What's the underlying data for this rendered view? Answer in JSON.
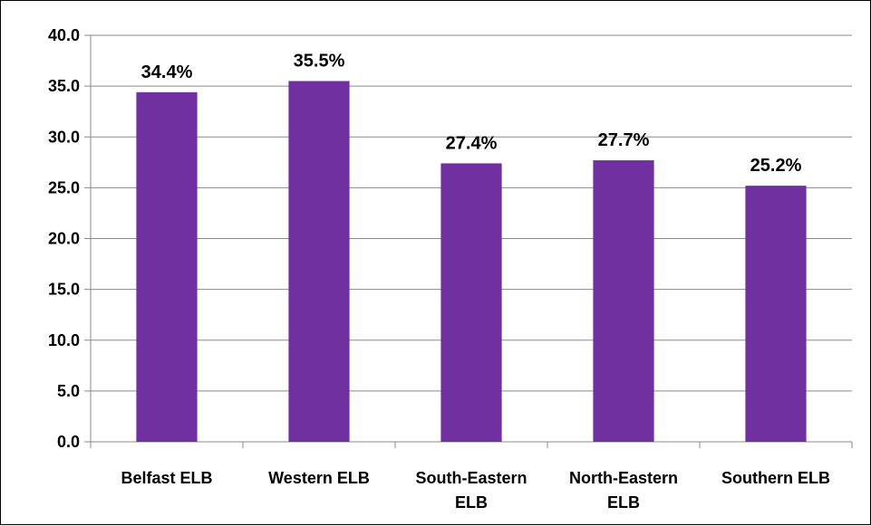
{
  "chart_data": {
    "type": "bar",
    "categories": [
      [
        "Belfast ELB"
      ],
      [
        "Western ELB"
      ],
      [
        "South-Eastern",
        "ELB"
      ],
      [
        "North-Eastern",
        "ELB"
      ],
      [
        "Southern ELB"
      ]
    ],
    "values": [
      34.4,
      35.5,
      27.4,
      27.7,
      25.2
    ],
    "data_labels": [
      "34.4%",
      "35.5%",
      "27.4%",
      "27.7%",
      "25.2%"
    ],
    "y_ticks": [
      "0.0",
      "5.0",
      "10.0",
      "15.0",
      "20.0",
      "25.0",
      "30.0",
      "35.0",
      "40.0"
    ],
    "ylim": [
      0,
      40
    ],
    "grid": true,
    "legend": "none",
    "colors": {
      "bar": "#7030A0",
      "grid": "#898989",
      "axis": "#898989"
    }
  }
}
